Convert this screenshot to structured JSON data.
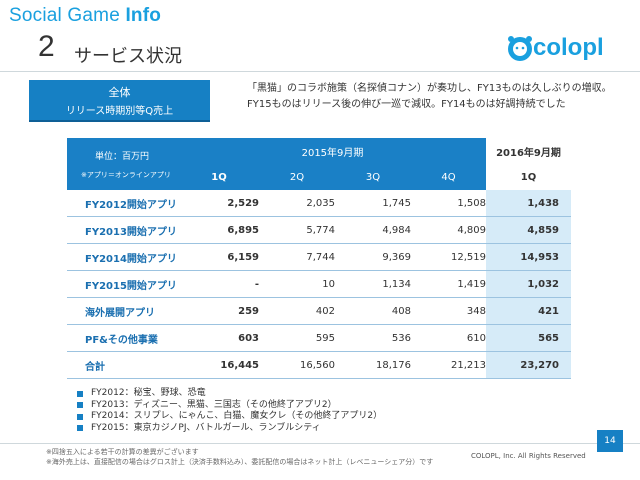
{
  "header": {
    "title_light": "Social Game ",
    "title_bold": "Info",
    "section_number": "2",
    "section_title": "サービス状況",
    "logo_text": "colopl",
    "brand_color": "#1aa0df"
  },
  "summary_box": {
    "line1": "全体",
    "line2": "リリース時期別等Q売上"
  },
  "description": "「黒猫」のコラボ施策（名探偵コナン）が奏功し、FY13ものは久しぶりの増収。FY15ものはリリース後の伸び一巡で減収。FY14ものは好調持続でした",
  "table": {
    "unit": "単位：百万円",
    "unit_note": "※アプリ＝オンラインアプリ",
    "period_2015": "2015年9月期",
    "period_2016": "2016年9月期",
    "quarters": [
      "1Q",
      "2Q",
      "3Q",
      "4Q",
      "1Q"
    ],
    "rows": [
      {
        "label": "FY2012開始アプリ",
        "values": [
          "2,529",
          "2,035",
          "1,745",
          "1,508",
          "1,438"
        ]
      },
      {
        "label": "FY2013開始アプリ",
        "values": [
          "6,895",
          "5,774",
          "4,984",
          "4,809",
          "4,859"
        ]
      },
      {
        "label": "FY2014開始アプリ",
        "values": [
          "6,159",
          "7,744",
          "9,369",
          "12,519",
          "14,953"
        ]
      },
      {
        "label": "FY2015開始アプリ",
        "values": [
          "-",
          "10",
          "1,134",
          "1,419",
          "1,032"
        ]
      },
      {
        "label": "海外展開アプリ",
        "values": [
          "259",
          "402",
          "408",
          "348",
          "421"
        ]
      },
      {
        "label": "PF&その他事業",
        "values": [
          "603",
          "595",
          "536",
          "610",
          "565"
        ]
      },
      {
        "label": "合計",
        "values": [
          "16,445",
          "16,560",
          "18,176",
          "21,213",
          "23,270"
        ]
      }
    ]
  },
  "bullets": [
    "FY2012：秘宝、野球、恐竜",
    "FY2013：ディズニー、黒猫、三国志（その他終了アプリ2）",
    "FY2014：スリプレ、にゃんこ、白猫、魔女クレ（その他終了アプリ2）",
    "FY2015：東京カジノPJ、バトルガール、ランブルシティ"
  ],
  "notes": [
    "※四捨五入による若干の計算の差異がございます",
    "※海外売上は、直接配信の場合はグロス計上（決済手数料込み）、委託配信の場合はネット計上（レベニューシェア分）です"
  ],
  "copyright": "COLOPL, Inc. All Rights Reserved",
  "page_number": "14"
}
